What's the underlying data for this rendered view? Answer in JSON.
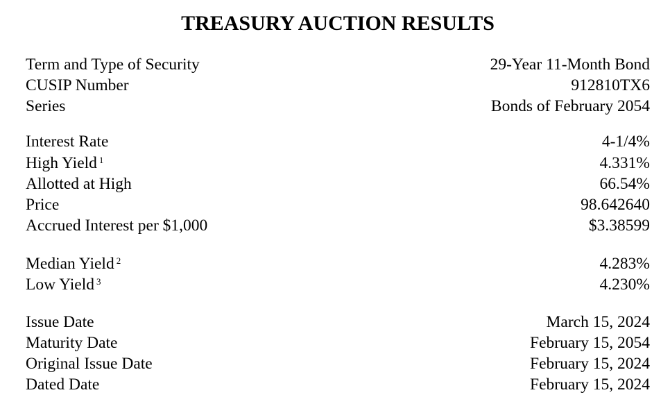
{
  "title": "TREASURY AUCTION RESULTS",
  "groups": [
    {
      "rows": [
        {
          "label": "Term and Type of Security",
          "value": "29-Year 11-Month Bond"
        },
        {
          "label": "CUSIP Number",
          "value": "912810TX6"
        },
        {
          "label": "Series",
          "value": "Bonds of February 2054"
        }
      ]
    },
    {
      "rows": [
        {
          "label": "Interest Rate",
          "value": "4-1/4%"
        },
        {
          "label": "High Yield",
          "footnote": "1",
          "value": "4.331%"
        },
        {
          "label": "Allotted at High",
          "value": "66.54%"
        },
        {
          "label": "Price",
          "value": "98.642640"
        },
        {
          "label": "Accrued Interest per $1,000",
          "value": "$3.38599"
        }
      ]
    },
    {
      "rows": [
        {
          "label": "Median Yield",
          "footnote": "2",
          "value": "4.283%"
        },
        {
          "label": "Low Yield",
          "footnote": "3",
          "value": "4.230%"
        }
      ]
    },
    {
      "rows": [
        {
          "label": "Issue Date",
          "value": "March 15, 2024"
        },
        {
          "label": "Maturity Date",
          "value": "February 15, 2054"
        },
        {
          "label": "Original Issue Date",
          "value": "February 15, 2024"
        },
        {
          "label": "Dated Date",
          "value": "February 15, 2024"
        }
      ]
    }
  ]
}
